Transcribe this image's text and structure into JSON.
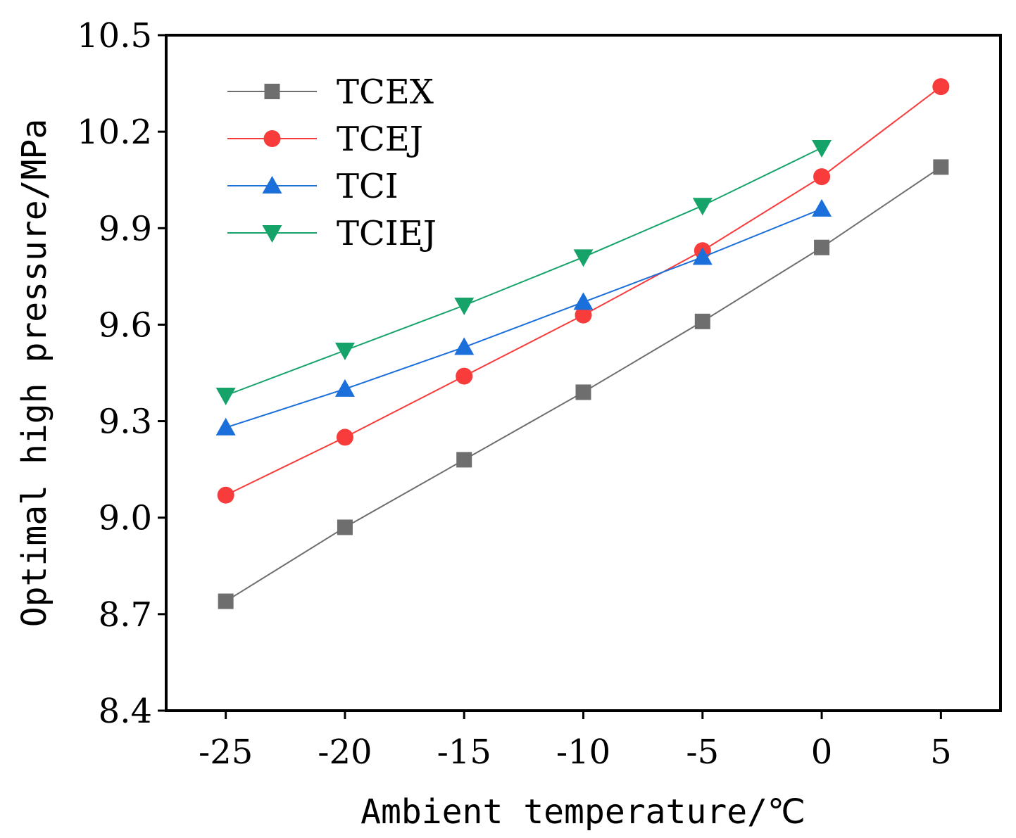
{
  "chart_data": {
    "type": "line",
    "title": "",
    "xlabel": "Ambient temperature/℃",
    "ylabel": "Optimal high pressure/MPa",
    "xlim": [
      -27.5,
      7.5
    ],
    "ylim": [
      8.4,
      10.5
    ],
    "xticks": [
      -25,
      -20,
      -15,
      -10,
      -5,
      0,
      5
    ],
    "yticks": [
      8.4,
      8.7,
      9.0,
      9.3,
      9.6,
      9.9,
      10.2,
      10.5
    ],
    "xtick_labels": [
      "-25",
      "-20",
      "-15",
      "-10",
      "-5",
      "0",
      "5"
    ],
    "ytick_labels": [
      "8.4",
      "8.7",
      "9.0",
      "9.3",
      "9.6",
      "9.9",
      "10.2",
      "10.5"
    ],
    "grid": false,
    "legend_position": "top-left",
    "series": [
      {
        "name": "TCEX",
        "color": "#6e6e6e",
        "marker": "square",
        "x": [
          -25,
          -20,
          -15,
          -10,
          -5,
          0,
          5
        ],
        "values": [
          8.74,
          8.97,
          9.18,
          9.39,
          9.61,
          9.84,
          10.09
        ]
      },
      {
        "name": "TCEJ",
        "color": "#f83b3b",
        "marker": "circle",
        "x": [
          -25,
          -20,
          -15,
          -10,
          -5,
          0,
          5
        ],
        "values": [
          9.07,
          9.25,
          9.44,
          9.63,
          9.83,
          10.06,
          10.34
        ]
      },
      {
        "name": "TCI",
        "color": "#1a6fdb",
        "marker": "triangle-up",
        "x": [
          -25,
          -20,
          -15,
          -10,
          -5,
          0
        ],
        "values": [
          9.28,
          9.4,
          9.53,
          9.67,
          9.81,
          9.96
        ]
      },
      {
        "name": "TCIEJ",
        "color": "#16a36a",
        "marker": "triangle-down",
        "x": [
          -25,
          -20,
          -15,
          -10,
          -5,
          0
        ],
        "values": [
          9.38,
          9.52,
          9.66,
          9.81,
          9.97,
          10.15
        ]
      }
    ]
  }
}
